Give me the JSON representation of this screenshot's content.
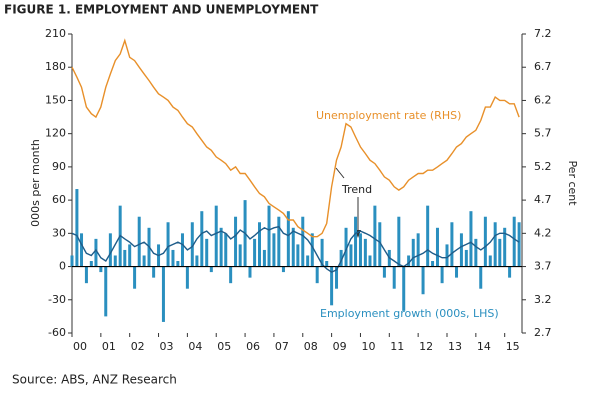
{
  "chart_data": {
    "type": "combo",
    "title": "FIGURE 1. EMPLOYMENT AND UNEMPLOYMENT",
    "ylabel": "000s per month",
    "y2label": "Per cent",
    "source": "Source: ABS, ANZ Research",
    "xlim": [
      2000,
      2015.6
    ],
    "xticks": [
      {
        "value": 2000,
        "label": "00"
      },
      {
        "value": 2001,
        "label": "01"
      },
      {
        "value": 2002,
        "label": "02"
      },
      {
        "value": 2003,
        "label": "03"
      },
      {
        "value": 2004,
        "label": "04"
      },
      {
        "value": 2005,
        "label": "05"
      },
      {
        "value": 2006,
        "label": "06"
      },
      {
        "value": 2007,
        "label": "07"
      },
      {
        "value": 2008,
        "label": "08"
      },
      {
        "value": 2009,
        "label": "09"
      },
      {
        "value": 2010,
        "label": "10"
      },
      {
        "value": 2011,
        "label": "11"
      },
      {
        "value": 2012,
        "label": "12"
      },
      {
        "value": 2013,
        "label": "13"
      },
      {
        "value": 2014,
        "label": "14"
      },
      {
        "value": 2015,
        "label": "15"
      }
    ],
    "ylim": [
      -60,
      210
    ],
    "yticks": [
      -60,
      -30,
      0,
      30,
      60,
      90,
      120,
      150,
      180,
      210
    ],
    "y2lim": [
      2.7,
      7.2
    ],
    "y2ticks": [
      2.7,
      3.2,
      3.7,
      4.2,
      4.7,
      5.2,
      5.7,
      6.2,
      6.7,
      7.2
    ],
    "x": [
      2000,
      2000.17,
      2000.33,
      2000.5,
      2000.67,
      2000.83,
      2001,
      2001.17,
      2001.33,
      2001.5,
      2001.67,
      2001.83,
      2002,
      2002.17,
      2002.33,
      2002.5,
      2002.67,
      2002.83,
      2003,
      2003.17,
      2003.33,
      2003.5,
      2003.67,
      2003.83,
      2004,
      2004.17,
      2004.33,
      2004.5,
      2004.67,
      2004.83,
      2005,
      2005.17,
      2005.33,
      2005.5,
      2005.67,
      2005.83,
      2006,
      2006.17,
      2006.33,
      2006.5,
      2006.67,
      2006.83,
      2007,
      2007.17,
      2007.33,
      2007.5,
      2007.67,
      2007.83,
      2008,
      2008.17,
      2008.33,
      2008.5,
      2008.67,
      2008.83,
      2009,
      2009.17,
      2009.33,
      2009.5,
      2009.67,
      2009.83,
      2010,
      2010.17,
      2010.33,
      2010.5,
      2010.67,
      2010.83,
      2011,
      2011.17,
      2011.33,
      2011.5,
      2011.67,
      2011.83,
      2012,
      2012.17,
      2012.33,
      2012.5,
      2012.67,
      2012.83,
      2013,
      2013.17,
      2013.33,
      2013.5,
      2013.67,
      2013.83,
      2014,
      2014.17,
      2014.33,
      2014.5,
      2014.67,
      2014.83,
      2015,
      2015.17,
      2015.33,
      2015.5
    ],
    "series": [
      {
        "name": "Employment growth (000s, LHS)",
        "kind": "bar",
        "color": "#2a8fbf",
        "values": [
          10,
          70,
          30,
          -15,
          5,
          25,
          -5,
          -45,
          30,
          10,
          55,
          15,
          20,
          -20,
          45,
          10,
          35,
          -10,
          20,
          -50,
          40,
          15,
          5,
          30,
          -20,
          40,
          10,
          50,
          25,
          -5,
          55,
          35,
          30,
          -15,
          45,
          20,
          60,
          -10,
          25,
          40,
          15,
          55,
          30,
          45,
          -5,
          50,
          35,
          20,
          45,
          10,
          30,
          -15,
          25,
          5,
          -35,
          -20,
          15,
          35,
          20,
          45,
          30,
          25,
          10,
          55,
          40,
          -10,
          15,
          -20,
          45,
          -40,
          10,
          25,
          30,
          -25,
          55,
          5,
          35,
          -15,
          20,
          40,
          -10,
          30,
          15,
          50,
          25,
          -20,
          45,
          10,
          40,
          25,
          35,
          -10,
          45,
          40
        ]
      },
      {
        "name": "Trend",
        "kind": "line",
        "color": "#1f5d8a",
        "values": [
          30,
          28,
          20,
          12,
          10,
          15,
          8,
          5,
          12,
          20,
          28,
          25,
          22,
          18,
          20,
          22,
          18,
          12,
          10,
          12,
          18,
          20,
          22,
          20,
          15,
          18,
          25,
          30,
          32,
          28,
          30,
          32,
          30,
          25,
          28,
          33,
          30,
          25,
          28,
          32,
          35,
          33,
          35,
          36,
          30,
          28,
          32,
          30,
          28,
          24,
          18,
          10,
          2,
          -2,
          -5,
          -3,
          5,
          15,
          25,
          30,
          32,
          30,
          28,
          25,
          22,
          15,
          8,
          5,
          2,
          0,
          3,
          8,
          10,
          12,
          15,
          12,
          10,
          8,
          8,
          12,
          15,
          18,
          20,
          22,
          18,
          15,
          18,
          22,
          28,
          30,
          30,
          28,
          25,
          22
        ]
      },
      {
        "name": "Unemployment rate (RHS)",
        "kind": "line",
        "axis": "y2",
        "color": "#e8902a",
        "values": [
          6.7,
          6.55,
          6.4,
          6.1,
          6.0,
          5.95,
          6.1,
          6.4,
          6.6,
          6.8,
          6.9,
          7.1,
          6.85,
          6.8,
          6.7,
          6.6,
          6.5,
          6.4,
          6.3,
          6.25,
          6.2,
          6.1,
          6.05,
          5.95,
          5.85,
          5.8,
          5.7,
          5.6,
          5.5,
          5.45,
          5.35,
          5.3,
          5.25,
          5.15,
          5.2,
          5.1,
          5.1,
          5.0,
          4.9,
          4.8,
          4.75,
          4.65,
          4.6,
          4.55,
          4.5,
          4.4,
          4.4,
          4.3,
          4.25,
          4.2,
          4.15,
          4.15,
          4.2,
          4.35,
          4.9,
          5.3,
          5.5,
          5.85,
          5.8,
          5.65,
          5.5,
          5.4,
          5.3,
          5.25,
          5.15,
          5.05,
          5.0,
          4.9,
          4.85,
          4.9,
          5.0,
          5.05,
          5.1,
          5.1,
          5.15,
          5.15,
          5.2,
          5.25,
          5.3,
          5.4,
          5.5,
          5.55,
          5.65,
          5.7,
          5.75,
          5.9,
          6.1,
          6.1,
          6.25,
          6.2,
          6.2,
          6.15,
          6.15,
          5.95
        ]
      }
    ]
  }
}
